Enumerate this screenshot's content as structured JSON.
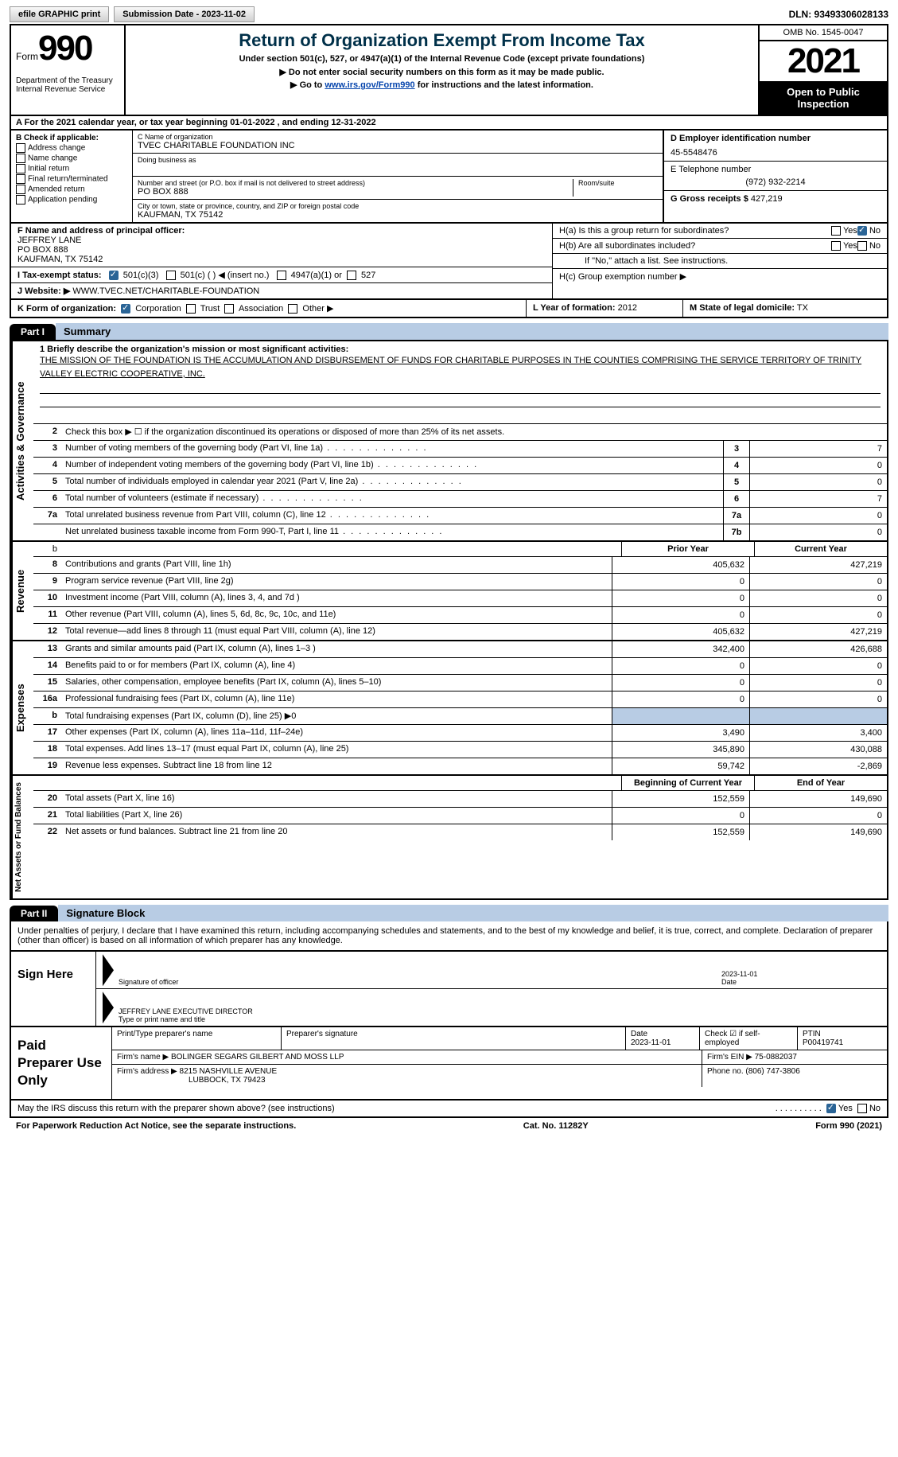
{
  "top": {
    "efile": "efile GRAPHIC print",
    "submission": "Submission Date - 2023-11-02",
    "dln": "DLN: 93493306028133"
  },
  "header": {
    "form_word": "Form",
    "form_num": "990",
    "dept": "Department of the Treasury",
    "irs": "Internal Revenue Service",
    "title": "Return of Organization Exempt From Income Tax",
    "sub1": "Under section 501(c), 527, or 4947(a)(1) of the Internal Revenue Code (except private foundations)",
    "sub2": "▶ Do not enter social security numbers on this form as it may be made public.",
    "sub3_pre": "▶ Go to ",
    "sub3_link": "www.irs.gov/Form990",
    "sub3_post": " for instructions and the latest information.",
    "omb": "OMB No. 1545-0047",
    "year": "2021",
    "open": "Open to Public Inspection"
  },
  "rowA": "A For the 2021 calendar year, or tax year beginning 01-01-2022    , and ending 12-31-2022",
  "B": {
    "hdr": "B Check if applicable:",
    "items": [
      "Address change",
      "Name change",
      "Initial return",
      "Final return/terminated",
      "Amended return",
      "Application pending"
    ]
  },
  "C": {
    "name_lbl": "C Name of organization",
    "name": "TVEC CHARITABLE FOUNDATION INC",
    "dba_lbl": "Doing business as",
    "addr_lbl": "Number and street (or P.O. box if mail is not delivered to street address)",
    "room_lbl": "Room/suite",
    "addr": "PO BOX 888",
    "city_lbl": "City or town, state or province, country, and ZIP or foreign postal code",
    "city": "KAUFMAN, TX  75142"
  },
  "D": {
    "lbl": "D Employer identification number",
    "val": "45-5548476"
  },
  "E": {
    "lbl": "E Telephone number",
    "val": "(972) 932-2214"
  },
  "G": {
    "lbl": "G Gross receipts $",
    "val": "427,219"
  },
  "F": {
    "lbl": "F  Name and address of principal officer:",
    "name": "JEFFREY LANE",
    "addr": "PO BOX 888",
    "city": "KAUFMAN, TX  75142"
  },
  "H": {
    "a": "H(a)  Is this a group return for subordinates?",
    "b": "H(b)  Are all subordinates included?",
    "b2": "If \"No,\" attach a list. See instructions.",
    "c": "H(c)  Group exemption number ▶"
  },
  "I": {
    "lbl": "I    Tax-exempt status:",
    "opts": [
      "501(c)(3)",
      "501(c) (  ) ◀ (insert no.)",
      "4947(a)(1) or",
      "527"
    ]
  },
  "J": {
    "lbl": "J   Website: ▶",
    "val": "  WWW.TVEC.NET/CHARITABLE-FOUNDATION"
  },
  "K": {
    "lbl": "K Form of organization:",
    "opts": [
      "Corporation",
      "Trust",
      "Association",
      "Other ▶"
    ]
  },
  "L": {
    "lbl": "L Year of formation:",
    "val": "2012"
  },
  "M": {
    "lbl": "M State of legal domicile:",
    "val": "TX"
  },
  "part1": {
    "tab": "Part I",
    "title": "Summary"
  },
  "summary": {
    "l1_lbl": "1  Briefly describe the organization's mission or most significant activities:",
    "l1_text": "THE MISSION OF THE FOUNDATION IS THE ACCUMULATION AND DISBURSEMENT OF FUNDS FOR CHARITABLE PURPOSES IN THE COUNTIES COMPRISING THE SERVICE TERRITORY OF TRINITY VALLEY ELECTRIC COOPERATIVE, INC.",
    "l2": "Check this box ▶ ☐  if the organization discontinued its operations or disposed of more than 25% of its net assets.",
    "rows": [
      {
        "n": "3",
        "t": "Number of voting members of the governing body (Part VI, line 1a)",
        "b": "3",
        "v": "7"
      },
      {
        "n": "4",
        "t": "Number of independent voting members of the governing body (Part VI, line 1b)",
        "b": "4",
        "v": "0"
      },
      {
        "n": "5",
        "t": "Total number of individuals employed in calendar year 2021 (Part V, line 2a)",
        "b": "5",
        "v": "0"
      },
      {
        "n": "6",
        "t": "Total number of volunteers (estimate if necessary)",
        "b": "6",
        "v": "7"
      },
      {
        "n": "7a",
        "t": "Total unrelated business revenue from Part VIII, column (C), line 12",
        "b": "7a",
        "v": "0"
      },
      {
        "n": "",
        "t": "Net unrelated business taxable income from Form 990-T, Part I, line 11",
        "b": "7b",
        "v": "0"
      }
    ]
  },
  "vlabels": {
    "ag": "Activities & Governance",
    "rev": "Revenue",
    "exp": "Expenses",
    "na": "Net Assets or Fund Balances"
  },
  "colhdrs": {
    "prior": "Prior Year",
    "current": "Current Year",
    "begin": "Beginning of Current Year",
    "end": "End of Year"
  },
  "revenue": [
    {
      "n": "8",
      "t": "Contributions and grants (Part VIII, line 1h)",
      "p": "405,632",
      "c": "427,219"
    },
    {
      "n": "9",
      "t": "Program service revenue (Part VIII, line 2g)",
      "p": "0",
      "c": "0"
    },
    {
      "n": "10",
      "t": "Investment income (Part VIII, column (A), lines 3, 4, and 7d )",
      "p": "0",
      "c": "0"
    },
    {
      "n": "11",
      "t": "Other revenue (Part VIII, column (A), lines 5, 6d, 8c, 9c, 10c, and 11e)",
      "p": "0",
      "c": "0"
    },
    {
      "n": "12",
      "t": "Total revenue—add lines 8 through 11 (must equal Part VIII, column (A), line 12)",
      "p": "405,632",
      "c": "427,219"
    }
  ],
  "expenses": [
    {
      "n": "13",
      "t": "Grants and similar amounts paid (Part IX, column (A), lines 1–3 )",
      "p": "342,400",
      "c": "426,688"
    },
    {
      "n": "14",
      "t": "Benefits paid to or for members (Part IX, column (A), line 4)",
      "p": "0",
      "c": "0"
    },
    {
      "n": "15",
      "t": "Salaries, other compensation, employee benefits (Part IX, column (A), lines 5–10)",
      "p": "0",
      "c": "0"
    },
    {
      "n": "16a",
      "t": "Professional fundraising fees (Part IX, column (A), line 11e)",
      "p": "0",
      "c": "0"
    },
    {
      "n": "b",
      "t": "Total fundraising expenses (Part IX, column (D), line 25) ▶0",
      "p": "",
      "c": "",
      "shaded": true
    },
    {
      "n": "17",
      "t": "Other expenses (Part IX, column (A), lines 11a–11d, 11f–24e)",
      "p": "3,490",
      "c": "3,400"
    },
    {
      "n": "18",
      "t": "Total expenses. Add lines 13–17 (must equal Part IX, column (A), line 25)",
      "p": "345,890",
      "c": "430,088"
    },
    {
      "n": "19",
      "t": "Revenue less expenses. Subtract line 18 from line 12",
      "p": "59,742",
      "c": "-2,869"
    }
  ],
  "netassets": [
    {
      "n": "20",
      "t": "Total assets (Part X, line 16)",
      "p": "152,559",
      "c": "149,690"
    },
    {
      "n": "21",
      "t": "Total liabilities (Part X, line 26)",
      "p": "0",
      "c": "0"
    },
    {
      "n": "22",
      "t": "Net assets or fund balances. Subtract line 21 from line 20",
      "p": "152,559",
      "c": "149,690"
    }
  ],
  "part2": {
    "tab": "Part II",
    "title": "Signature Block"
  },
  "sig": {
    "decl": "Under penalties of perjury, I declare that I have examined this return, including accompanying schedules and statements, and to the best of my knowledge and belief, it is true, correct, and complete. Declaration of preparer (other than officer) is based on all information of which preparer has any knowledge.",
    "sign_here": "Sign Here",
    "sig_officer": "Signature of officer",
    "date": "Date",
    "date_val": "2023-11-01",
    "name_title": "JEFFREY LANE  EXECUTIVE DIRECTOR",
    "type_name": "Type or print name and title"
  },
  "prep": {
    "label": "Paid Preparer Use Only",
    "r1": {
      "a": "Print/Type preparer's name",
      "b": "Preparer's signature",
      "c": "Date",
      "c_val": "2023-11-01",
      "d": "Check ☑ if self-employed",
      "e": "PTIN",
      "e_val": "P00419741"
    },
    "r2": {
      "a": "Firm's name      ▶",
      "a_val": "BOLINGER SEGARS GILBERT AND MOSS LLP",
      "b": "Firm's EIN ▶",
      "b_val": "75-0882037"
    },
    "r3": {
      "a": "Firm's address ▶",
      "a_val": "8215 NASHVILLE AVENUE",
      "a_val2": "LUBBOCK, TX  79423",
      "b": "Phone no.",
      "b_val": "(806) 747-3806"
    }
  },
  "discuss": "May the IRS discuss this return with the preparer shown above? (see instructions)",
  "footer": {
    "pra": "For Paperwork Reduction Act Notice, see the separate instructions.",
    "cat": "Cat. No. 11282Y",
    "form": "Form 990 (2021)"
  }
}
